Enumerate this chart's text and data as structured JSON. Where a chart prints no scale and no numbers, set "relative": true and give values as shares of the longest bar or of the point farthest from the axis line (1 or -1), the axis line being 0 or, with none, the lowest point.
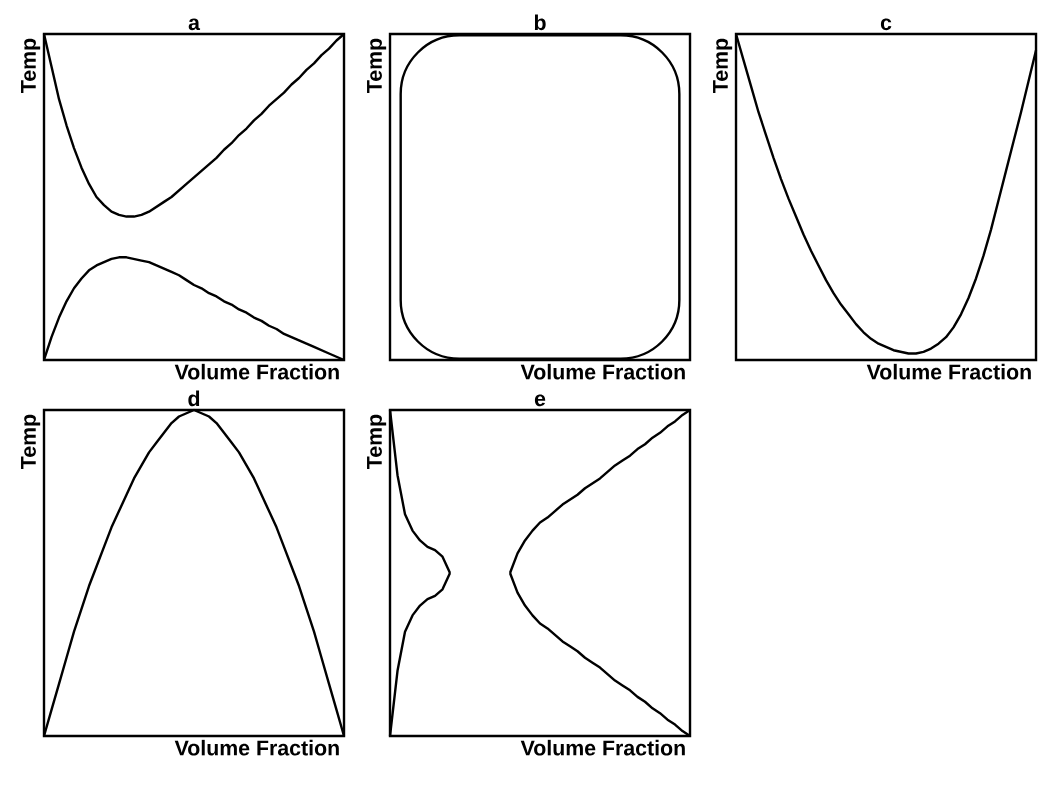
{
  "chart_data": [
    {
      "type": "line",
      "title": "a",
      "xlabel": "Volume Fraction",
      "ylabel": "Temp",
      "relative": true,
      "categories": [
        null,
        null,
        null,
        null,
        null,
        null,
        null,
        null,
        null,
        null,
        null,
        null,
        null,
        null,
        null,
        null,
        null,
        null,
        null,
        null,
        null,
        null,
        null,
        null,
        null,
        null,
        null,
        null,
        null,
        null,
        null,
        null,
        null,
        null,
        null,
        null,
        null,
        null,
        null,
        null,
        null
      ],
      "series": [
        {
          "color": "#000000",
          "values": [
            1,
            0.9,
            0.8,
            0.72,
            0.65,
            0.59,
            0.54,
            0.5,
            0.475,
            0.455,
            0.445,
            0.44,
            0.44,
            0.445,
            0.455,
            0.47,
            0.485,
            0.5,
            0.52,
            0.54,
            0.56,
            0.58,
            0.6,
            0.62,
            0.645,
            0.665,
            0.69,
            0.71,
            0.735,
            0.755,
            0.78,
            0.8,
            0.82,
            0.845,
            0.865,
            0.89,
            0.91,
            0.935,
            0.955,
            0.98,
            1
          ]
        },
        {
          "color": "#000000",
          "values": [
            0,
            0.07,
            0.13,
            0.18,
            0.22,
            0.25,
            0.275,
            0.29,
            0.3,
            0.31,
            0.315,
            0.315,
            0.31,
            0.305,
            0.3,
            0.29,
            0.28,
            0.27,
            0.26,
            0.245,
            0.23,
            0.22,
            0.205,
            0.195,
            0.18,
            0.17,
            0.155,
            0.145,
            0.13,
            0.12,
            0.105,
            0.095,
            0.08,
            0.07,
            0.06,
            0.05,
            0.04,
            0.03,
            0.02,
            0.01,
            0
          ]
        }
      ]
    },
    {
      "type": "other",
      "title": "b",
      "xlabel": "Volume Fraction",
      "ylabel": "Temp"
    },
    {
      "type": "line",
      "title": "c",
      "xlabel": "Volume Fraction",
      "ylabel": "Temp",
      "relative": true,
      "categories": [
        null,
        null,
        null,
        null,
        null,
        null,
        null,
        null,
        null,
        null,
        null,
        null,
        null,
        null,
        null,
        null,
        null,
        null,
        null,
        null,
        null,
        null,
        null,
        null,
        null,
        null,
        null,
        null,
        null,
        null,
        null,
        null,
        null,
        null,
        null,
        null,
        null,
        null,
        null,
        null,
        null
      ],
      "series": [
        {
          "color": "#000000",
          "values": [
            1,
            0.92,
            0.84,
            0.76,
            0.69,
            0.62,
            0.555,
            0.495,
            0.44,
            0.385,
            0.335,
            0.29,
            0.245,
            0.205,
            0.17,
            0.14,
            0.11,
            0.085,
            0.065,
            0.05,
            0.04,
            0.03,
            0.025,
            0.02,
            0.02,
            0.025,
            0.035,
            0.05,
            0.07,
            0.1,
            0.14,
            0.19,
            0.25,
            0.32,
            0.4,
            0.49,
            0.58,
            0.67,
            0.76,
            0.855,
            0.95
          ]
        }
      ]
    },
    {
      "type": "line",
      "title": "d",
      "xlabel": "Volume Fraction",
      "ylabel": "Temp",
      "relative": true,
      "categories": [
        null,
        null,
        null,
        null,
        null,
        null,
        null,
        null,
        null,
        null,
        null,
        null,
        null,
        null,
        null,
        null,
        null,
        null,
        null,
        null,
        null,
        null,
        null,
        null,
        null,
        null,
        null,
        null,
        null,
        null,
        null,
        null,
        null,
        null,
        null,
        null,
        null,
        null,
        null,
        null,
        null
      ],
      "series": [
        {
          "color": "#000000",
          "values": [
            0,
            0.08,
            0.16,
            0.24,
            0.32,
            0.39,
            0.46,
            0.52,
            0.58,
            0.64,
            0.69,
            0.74,
            0.79,
            0.83,
            0.87,
            0.9,
            0.93,
            0.96,
            0.98,
            0.99,
            1,
            0.99,
            0.98,
            0.96,
            0.93,
            0.9,
            0.87,
            0.83,
            0.79,
            0.74,
            0.69,
            0.64,
            0.58,
            0.52,
            0.46,
            0.39,
            0.32,
            0.24,
            0.16,
            0.08,
            0
          ]
        }
      ]
    },
    {
      "type": "line",
      "title": "e",
      "xlabel": "Volume Fraction",
      "ylabel": "Temp",
      "relative": true,
      "categories": [
        null,
        null,
        null,
        null,
        null,
        null,
        null,
        null,
        null,
        null,
        null,
        null,
        null,
        null,
        null,
        null,
        null,
        null,
        null,
        null,
        null,
        null,
        null,
        null,
        null,
        null,
        null,
        null,
        null,
        null,
        null,
        null,
        null,
        null,
        null,
        null,
        null,
        null,
        null,
        null,
        null
      ],
      "series": [
        {
          "color": "#000000",
          "values": [
            1,
            0.8,
            0.68,
            0.63,
            0.6,
            0.58,
            0.57,
            0.55,
            0.5,
            null,
            null,
            null,
            null,
            null,
            null,
            null,
            null,
            null,
            null,
            null,
            null,
            null,
            null,
            null,
            null,
            null,
            null,
            null,
            null,
            null,
            null,
            null,
            null,
            null,
            null,
            null,
            null,
            null,
            null,
            null,
            null
          ]
        },
        {
          "color": "#000000",
          "values": [
            0,
            0.2,
            0.32,
            0.37,
            0.4,
            0.42,
            0.43,
            0.45,
            0.5,
            null,
            null,
            null,
            null,
            null,
            null,
            null,
            null,
            null,
            null,
            null,
            null,
            null,
            null,
            null,
            null,
            null,
            null,
            null,
            null,
            null,
            null,
            null,
            null,
            null,
            null,
            null,
            null,
            null,
            null,
            null,
            null
          ]
        },
        {
          "color": "#000000",
          "values": [
            null,
            null,
            null,
            null,
            null,
            null,
            null,
            null,
            null,
            null,
            null,
            null,
            null,
            null,
            null,
            null,
            0.5,
            0.56,
            0.6,
            0.63,
            0.655,
            0.67,
            0.69,
            0.71,
            0.725,
            0.74,
            0.76,
            0.775,
            0.79,
            0.81,
            0.83,
            0.845,
            0.86,
            0.88,
            0.895,
            0.915,
            0.93,
            0.95,
            0.965,
            0.985,
            1
          ]
        },
        {
          "color": "#000000",
          "values": [
            null,
            null,
            null,
            null,
            null,
            null,
            null,
            null,
            null,
            null,
            null,
            null,
            null,
            null,
            null,
            null,
            0.5,
            0.44,
            0.4,
            0.37,
            0.345,
            0.33,
            0.31,
            0.29,
            0.275,
            0.26,
            0.24,
            0.225,
            0.21,
            0.19,
            0.17,
            0.155,
            0.14,
            0.12,
            0.105,
            0.085,
            0.07,
            0.05,
            0.035,
            0.015,
            0
          ]
        }
      ]
    }
  ]
}
